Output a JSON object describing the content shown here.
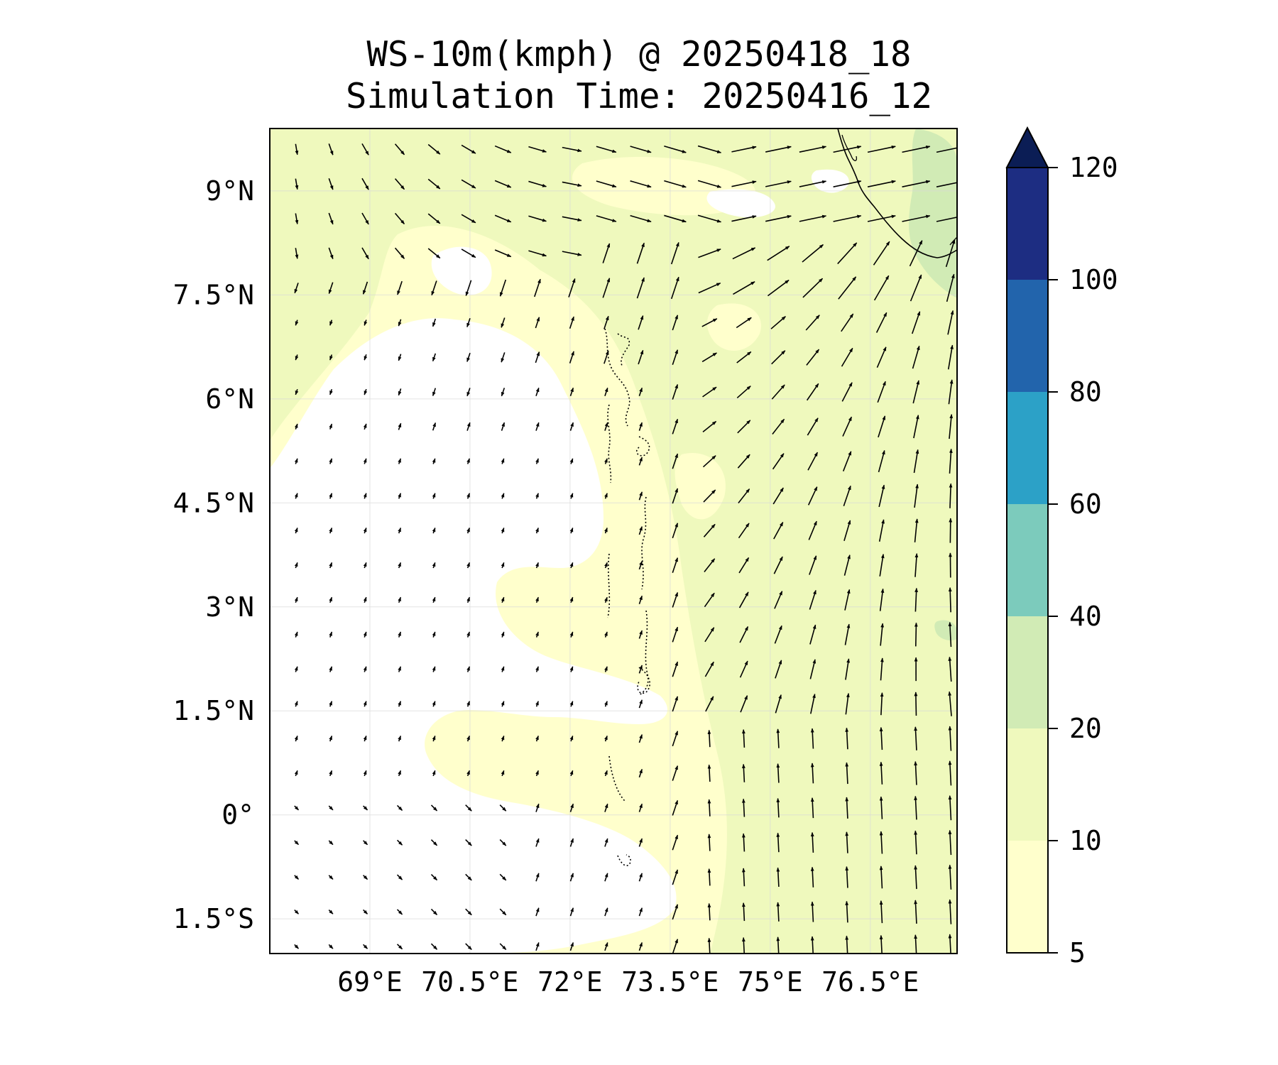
{
  "title": {
    "line1": "WS-10m(kmph) @ 20250418_18",
    "line2": "Simulation Time: 20250416_12"
  },
  "map": {
    "lon_range": [
      67.5,
      77.8
    ],
    "lat_range": [
      -2.0,
      9.9
    ],
    "lon_ticks": [
      {
        "value": 69,
        "label": "69°E"
      },
      {
        "value": 70.5,
        "label": "70.5°E"
      },
      {
        "value": 72,
        "label": "72°E"
      },
      {
        "value": 73.5,
        "label": "73.5°E"
      },
      {
        "value": 75,
        "label": "75°E"
      },
      {
        "value": 76.5,
        "label": "76.5°E"
      }
    ],
    "lat_ticks": [
      {
        "value": 9,
        "label": "9°N"
      },
      {
        "value": 7.5,
        "label": "7.5°N"
      },
      {
        "value": 6,
        "label": "6°N"
      },
      {
        "value": 4.5,
        "label": "4.5°N"
      },
      {
        "value": 3,
        "label": "3°N"
      },
      {
        "value": 1.5,
        "label": "1.5°N"
      },
      {
        "value": 0,
        "label": "0°"
      },
      {
        "value": -1.5,
        "label": "1.5°S"
      }
    ],
    "gridlines": true
  },
  "colorbar": {
    "levels": [
      5,
      10,
      20,
      40,
      60,
      80,
      100,
      120
    ],
    "colors": [
      "#ffffcc",
      "#eff9bd",
      "#d1ebb5",
      "#7ccbbc",
      "#2ca1c7",
      "#2264ac",
      "#1d2d82"
    ],
    "extend_color": "#0b1d55",
    "extend": "max"
  },
  "colors": {
    "below_min": "#ffffff",
    "band_5_10": "#ffffcc",
    "band_10_20": "#eff9bd",
    "band_20_40": "#d1ebb5"
  }
}
